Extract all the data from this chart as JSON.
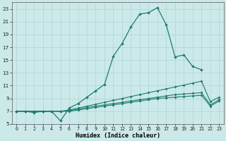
{
  "xlabel": "Humidex (Indice chaleur)",
  "background_color": "#cce9e9",
  "grid_color": "#aad4d4",
  "line_color": "#1e7b6e",
  "xlim": [
    -0.5,
    23.5
  ],
  "ylim": [
    5,
    24
  ],
  "xticks": [
    0,
    1,
    2,
    3,
    4,
    5,
    6,
    7,
    8,
    9,
    10,
    11,
    12,
    13,
    14,
    15,
    16,
    17,
    18,
    19,
    20,
    21,
    22,
    23
  ],
  "yticks": [
    5,
    7,
    9,
    11,
    13,
    15,
    17,
    19,
    21,
    23
  ],
  "line1_x": [
    0,
    1,
    2,
    3,
    4,
    5,
    6,
    7,
    8,
    9,
    10,
    11,
    12,
    13,
    14,
    15,
    16,
    17,
    18,
    19,
    20,
    21
  ],
  "line1_y": [
    7,
    7,
    6.8,
    7,
    7,
    5.5,
    7.5,
    8.2,
    9.2,
    10.2,
    11.2,
    15.6,
    17.6,
    20.2,
    22.2,
    22.4,
    23.2,
    20.5,
    15.5,
    15.8,
    14.0,
    13.5
  ],
  "line2_x": [
    0,
    1,
    2,
    3,
    4,
    5,
    6,
    7,
    8,
    9,
    10,
    11,
    12,
    13,
    14,
    15,
    16,
    17,
    18,
    19,
    20,
    21,
    22,
    23
  ],
  "line2_y": [
    7.0,
    7.0,
    7.0,
    7.0,
    7.0,
    7.0,
    7.2,
    7.5,
    7.8,
    8.1,
    8.4,
    8.7,
    9.0,
    9.3,
    9.6,
    9.9,
    10.2,
    10.5,
    10.8,
    11.1,
    11.4,
    11.7,
    8.5,
    9.2
  ],
  "line3_x": [
    0,
    1,
    2,
    3,
    4,
    5,
    6,
    7,
    8,
    9,
    10,
    11,
    12,
    13,
    14,
    15,
    16,
    17,
    18,
    19,
    20,
    21,
    22,
    23
  ],
  "line3_y": [
    7.0,
    7.0,
    7.0,
    7.0,
    7.0,
    7.0,
    7.1,
    7.3,
    7.6,
    7.8,
    8.0,
    8.2,
    8.4,
    8.6,
    8.8,
    9.0,
    9.2,
    9.4,
    9.6,
    9.7,
    9.8,
    9.9,
    8.0,
    8.8
  ],
  "line4_x": [
    0,
    1,
    2,
    3,
    4,
    5,
    6,
    7,
    8,
    9,
    10,
    11,
    12,
    13,
    14,
    15,
    16,
    17,
    18,
    19,
    20,
    21,
    22,
    23
  ],
  "line4_y": [
    7.0,
    7.0,
    7.0,
    7.0,
    7.0,
    7.0,
    7.0,
    7.2,
    7.4,
    7.6,
    7.8,
    8.0,
    8.2,
    8.4,
    8.6,
    8.8,
    9.0,
    9.1,
    9.2,
    9.3,
    9.4,
    9.5,
    7.8,
    8.6
  ]
}
